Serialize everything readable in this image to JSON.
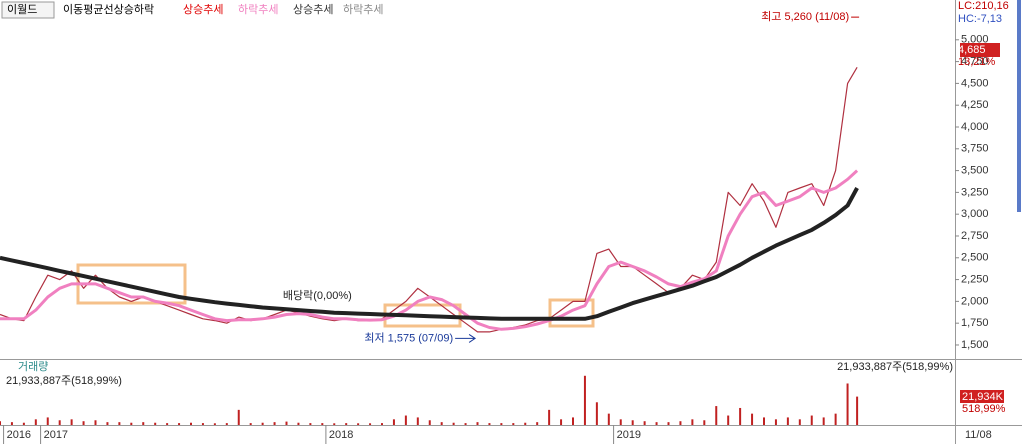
{
  "header": {
    "stock": "이월드",
    "legend": [
      {
        "label": "이동평균선상승하락",
        "color": "#000000"
      },
      {
        "label": "상승추세",
        "color": "#e00000"
      },
      {
        "label": "하락추세",
        "color": "#f080c0"
      },
      {
        "label": "상승추세",
        "color": "#333333"
      },
      {
        "label": "하락추세",
        "color": "#888888"
      }
    ]
  },
  "chart_data": [
    {
      "type": "line",
      "x": [
        0,
        10,
        20,
        30,
        40,
        50,
        60,
        70,
        80,
        90,
        100,
        110,
        120,
        130,
        140,
        150,
        160,
        170,
        180,
        190,
        200,
        210,
        220,
        230,
        240,
        250,
        260,
        270,
        280,
        290,
        300,
        310,
        320,
        330,
        340,
        350,
        360,
        370,
        380,
        390,
        400,
        410,
        420,
        430,
        440,
        450,
        460,
        470,
        480,
        490,
        500,
        510,
        520,
        530,
        540,
        550,
        560,
        570,
        580,
        590,
        600,
        610,
        620,
        630,
        640,
        650,
        660,
        670,
        680,
        690,
        700,
        710,
        718
      ],
      "xlim": [
        0,
        800
      ],
      "xticks": [
        {
          "value": 3,
          "label": "2016"
        },
        {
          "value": 34,
          "label": "2017"
        },
        {
          "value": 273,
          "label": "2018"
        },
        {
          "value": 514,
          "label": "2019"
        }
      ],
      "ylim": [
        1385,
        5250
      ],
      "yticks": [
        {
          "value": 1500,
          "label": "1,500"
        },
        {
          "value": 1750,
          "label": "1,750"
        },
        {
          "value": 2000,
          "label": "2,000"
        },
        {
          "value": 2250,
          "label": "2,250"
        },
        {
          "value": 2500,
          "label": "2,500"
        },
        {
          "value": 2750,
          "label": "2,750"
        },
        {
          "value": 3000,
          "label": "3,000"
        },
        {
          "value": 3250,
          "label": "3,250"
        },
        {
          "value": 3500,
          "label": "3,500"
        },
        {
          "value": 3750,
          "label": "3,750"
        },
        {
          "value": 4000,
          "label": "4,000"
        },
        {
          "value": 4250,
          "label": "4,250"
        },
        {
          "value": 4500,
          "label": "4,500"
        },
        {
          "value": 4750,
          "label": "4,750"
        },
        {
          "value": 5000,
          "label": "5,000"
        }
      ],
      "series": [
        {
          "color": "#b03040",
          "width": 1.2,
          "values": [
            1850,
            1800,
            1780,
            2050,
            2300,
            2250,
            2350,
            2150,
            2300,
            2150,
            2050,
            2000,
            2050,
            2000,
            1950,
            1900,
            1850,
            1800,
            1780,
            1750,
            1820,
            1780,
            1800,
            1850,
            1900,
            1870,
            1830,
            1800,
            1780,
            1800,
            1780,
            1780,
            1800,
            1900,
            2000,
            2150,
            2050,
            1950,
            1850,
            1750,
            1650,
            1650,
            1680,
            1700,
            1730,
            1780,
            1800,
            1900,
            2000,
            2000,
            2550,
            2600,
            2400,
            2400,
            2300,
            2200,
            2100,
            2150,
            2300,
            2250,
            2450,
            3250,
            3100,
            3350,
            3150,
            2850,
            3250,
            3300,
            3350,
            3100,
            3500,
            4500,
            4685
          ]
        },
        {
          "color": "#f080c0",
          "width": 3,
          "values": [
            1800,
            1800,
            1800,
            1900,
            2050,
            2150,
            2200,
            2200,
            2200,
            2150,
            2100,
            2050,
            2050,
            2000,
            1980,
            1950,
            1900,
            1850,
            1800,
            1780,
            1790,
            1790,
            1800,
            1820,
            1850,
            1860,
            1850,
            1820,
            1800,
            1800,
            1790,
            1785,
            1790,
            1830,
            1900,
            2000,
            2050,
            2020,
            1950,
            1850,
            1750,
            1700,
            1680,
            1690,
            1710,
            1740,
            1780,
            1830,
            1900,
            1950,
            2200,
            2400,
            2450,
            2400,
            2350,
            2280,
            2200,
            2170,
            2220,
            2260,
            2350,
            2750,
            3000,
            3200,
            3250,
            3100,
            3150,
            3200,
            3300,
            3250,
            3300,
            3400,
            3500
          ]
        },
        {
          "color": "#222222",
          "width": 4,
          "values": [
            2500,
            2470,
            2440,
            2410,
            2380,
            2350,
            2320,
            2290,
            2260,
            2230,
            2200,
            2170,
            2140,
            2110,
            2080,
            2050,
            2030,
            2010,
            1990,
            1975,
            1960,
            1945,
            1930,
            1920,
            1910,
            1900,
            1890,
            1880,
            1870,
            1865,
            1860,
            1855,
            1850,
            1845,
            1840,
            1835,
            1830,
            1825,
            1820,
            1815,
            1810,
            1805,
            1800,
            1800,
            1800,
            1800,
            1800,
            1800,
            1800,
            1800,
            1830,
            1880,
            1930,
            1980,
            2020,
            2060,
            2100,
            2140,
            2180,
            2230,
            2280,
            2350,
            2420,
            2500,
            2570,
            2640,
            2700,
            2760,
            2820,
            2900,
            2990,
            3100,
            3300
          ]
        }
      ],
      "annotations": [
        {
          "text": "최고 5,260 (11/08)",
          "x": 718,
          "y": 5260
        },
        {
          "text": "최저 1,575 (07/09)",
          "x": 398,
          "y": 1575
        },
        {
          "text": "배당락(0,00%)",
          "x": 237,
          "y": 2062
        }
      ],
      "right_labels": [
        "LC:210,16",
        "HC:-7,13",
        "4,685",
        "13,21%"
      ]
    },
    {
      "type": "bar",
      "title": "거래량",
      "x": [
        0,
        10,
        20,
        30,
        40,
        50,
        60,
        70,
        80,
        90,
        100,
        110,
        120,
        130,
        140,
        150,
        160,
        170,
        180,
        190,
        200,
        210,
        220,
        230,
        240,
        250,
        260,
        270,
        280,
        290,
        300,
        310,
        320,
        330,
        340,
        350,
        360,
        370,
        380,
        390,
        400,
        410,
        420,
        430,
        440,
        450,
        460,
        470,
        480,
        490,
        500,
        510,
        520,
        530,
        540,
        550,
        560,
        570,
        580,
        590,
        600,
        610,
        620,
        630,
        640,
        650,
        660,
        670,
        680,
        690,
        700,
        710,
        718
      ],
      "xlim": [
        0,
        800
      ],
      "ylim": [
        0,
        28000000
      ],
      "color": "#c02020",
      "values": [
        2000000,
        1500000,
        1200000,
        3000000,
        4000000,
        2500000,
        3000000,
        2000000,
        2500000,
        1500000,
        1500000,
        1200000,
        1500000,
        1200000,
        1000000,
        1000000,
        1200000,
        1000000,
        900000,
        1000000,
        8000000,
        1000000,
        1200000,
        1500000,
        1800000,
        1200000,
        1000000,
        1000000,
        900000,
        1000000,
        900000,
        900000,
        1000000,
        3000000,
        5000000,
        4000000,
        2500000,
        1500000,
        1200000,
        1000000,
        1500000,
        1000000,
        1000000,
        1000000,
        1200000,
        1500000,
        8000000,
        3000000,
        4000000,
        26000000,
        12000000,
        6000000,
        3000000,
        2500000,
        2000000,
        1500000,
        1500000,
        2000000,
        3000000,
        2500000,
        10000000,
        5000000,
        9000000,
        6000000,
        4000000,
        3000000,
        4000000,
        3000000,
        5000000,
        4000000,
        6000000,
        21933887,
        15000000
      ],
      "summary": "21,933,887주(518,99%)",
      "right_labels": [
        "21,934K",
        "518,99%"
      ],
      "end_label": "11/08"
    }
  ]
}
